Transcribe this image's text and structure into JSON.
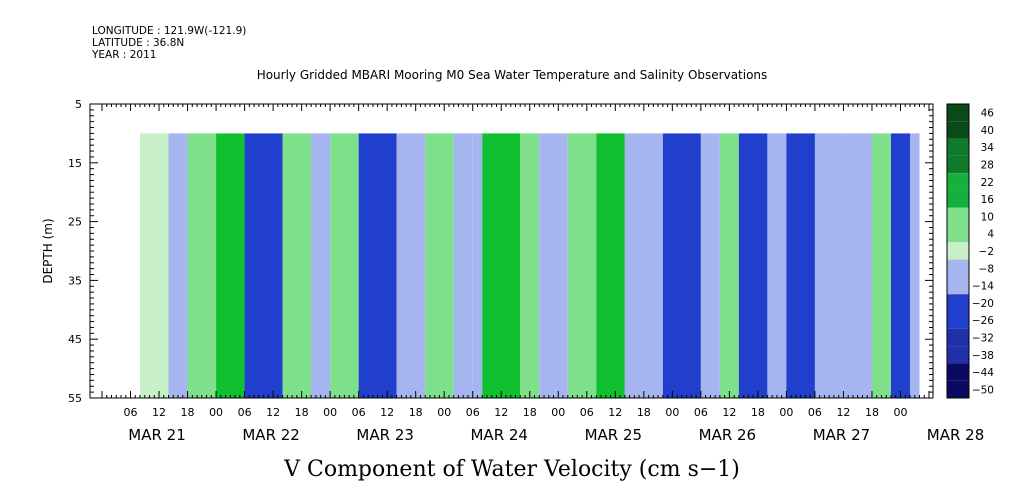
{
  "header": {
    "longitude": "LONGITUDE : 121.9W(-121.9)",
    "latitude": "LATITUDE : 36.8N",
    "year": "YEAR : 2011"
  },
  "chart_data": {
    "type": "heatmap",
    "title": "Hourly Gridded MBARI Mooring M0 Sea Water Temperature and Salinity Observations",
    "xlabel": "V Component of Water Velocity (cm s−1)",
    "ylabel": "DEPTH (m)",
    "ylim": [
      55,
      5
    ],
    "y_ticks": [
      "5",
      "15",
      "25",
      "35",
      "45",
      "55"
    ],
    "x_hour_ticks": [
      "06",
      "12",
      "18",
      "00",
      "06",
      "12",
      "18",
      "00",
      "06",
      "12",
      "18",
      "00",
      "06",
      "12",
      "18",
      "00",
      "06",
      "12",
      "18",
      "00",
      "06",
      "12",
      "18",
      "00",
      "06",
      "12",
      "18",
      "00"
    ],
    "x_day_labels": [
      "MAR 21",
      "MAR 22",
      "MAR 23",
      "MAR 24",
      "MAR 25",
      "MAR 26",
      "MAR 27",
      "MAR 28"
    ],
    "data_depth_range": [
      10,
      55
    ],
    "data_time_start": "MAR 21 ~08h",
    "colorbar": {
      "labels": [
        "46",
        "40",
        "34",
        "28",
        "22",
        "16",
        "10",
        "4",
        "−2",
        "−8",
        "−14",
        "−20",
        "−26",
        "−32",
        "−38",
        "−44",
        "−50"
      ],
      "range": [
        -50,
        50
      ]
    },
    "time_pattern": [
      {
        "start_hours": 8,
        "value": 2
      },
      {
        "start_hours": 14,
        "value": -6
      },
      {
        "start_hours": 18,
        "value": 6
      },
      {
        "start_hours": 24,
        "value": 10
      },
      {
        "start_hours": 30,
        "value": -14
      },
      {
        "start_hours": 38,
        "value": 4
      },
      {
        "start_hours": 44,
        "value": -4
      },
      {
        "start_hours": 48,
        "value": 8
      },
      {
        "start_hours": 54,
        "value": -16
      },
      {
        "start_hours": 62,
        "value": -6
      },
      {
        "start_hours": 68,
        "value": 8
      },
      {
        "start_hours": 74,
        "value": -4
      },
      {
        "start_hours": 78,
        "value": -10
      },
      {
        "start_hours": 80,
        "value": 12
      },
      {
        "start_hours": 88,
        "value": 4
      },
      {
        "start_hours": 92,
        "value": -8
      },
      {
        "start_hours": 98,
        "value": 6
      },
      {
        "start_hours": 104,
        "value": 12
      },
      {
        "start_hours": 110,
        "value": -12
      },
      {
        "start_hours": 118,
        "value": -18
      },
      {
        "start_hours": 126,
        "value": -10
      },
      {
        "start_hours": 130,
        "value": 6
      },
      {
        "start_hours": 134,
        "value": -14
      },
      {
        "start_hours": 140,
        "value": -8
      },
      {
        "start_hours": 144,
        "value": -16
      },
      {
        "start_hours": 150,
        "value": -8
      },
      {
        "start_hours": 156,
        "value": -12
      },
      {
        "start_hours": 162,
        "value": 4
      },
      {
        "start_hours": 166,
        "value": -14
      },
      {
        "start_hours": 170,
        "value": -8
      },
      {
        "start_hours": 172,
        "value": -8
      }
    ],
    "colors": {
      "negative_strong": "#1f3fcc",
      "negative_weak": "#a6b4f0",
      "neutral": "#c8f0c8",
      "positive_weak": "#7ee08a",
      "positive_strong": "#10c030"
    }
  }
}
